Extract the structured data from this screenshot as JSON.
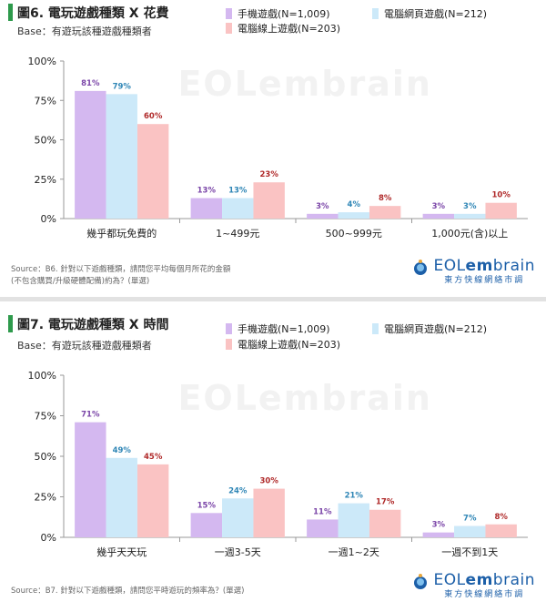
{
  "figures": [
    {
      "title": "圖6. 電玩遊戲種類 X 花費",
      "base": "Base：有遊玩該種遊戲種類者",
      "source_line1": "Source：B6. 針對以下遊戲種類，請問您平均每個月所花的金額",
      "source_line2": "(不包含購買/升級硬體配備)約為？(單選)"
    },
    {
      "title": "圖7. 電玩遊戲種類 X 時間",
      "base": "Base：有遊玩該種遊戲種類者",
      "source_line1": "Source：B7. 針對以下遊戲種類，請問您平時遊玩的頻率為？(單選)",
      "source_line2": ""
    }
  ],
  "legend": {
    "mobile": "手機遊戲(N=1,009)",
    "web": "電腦網頁遊戲(N=212)",
    "online": "電腦線上遊戲(N=203)"
  },
  "logo": {
    "eol": "EOL",
    "em": "em",
    "brain": "brain",
    "sub": "東方快線網絡市調"
  },
  "watermark": "EOLembrain",
  "colors": {
    "mobile": "#d4b8f0",
    "web": "#cce9f9",
    "online": "#fac3c3",
    "mobile_label": "#7b46a8",
    "web_label": "#2f86b6",
    "online_label": "#b02a2a",
    "title_bar": "#2e9a4c"
  },
  "chart_data": [
    {
      "type": "bar",
      "title": "圖6. 電玩遊戲種類 X 花費",
      "categories": [
        "幾乎都玩免費的",
        "1~499元",
        "500~999元",
        "1,000元(含)以上"
      ],
      "series": [
        {
          "name": "手機遊戲(N=1,009)",
          "values": [
            81,
            13,
            3,
            3
          ]
        },
        {
          "name": "電腦網頁遊戲(N=212)",
          "values": [
            79,
            13,
            4,
            3
          ]
        },
        {
          "name": "電腦線上遊戲(N=203)",
          "values": [
            60,
            23,
            8,
            10
          ]
        }
      ],
      "yticks": [
        "0%",
        "25%",
        "50%",
        "75%",
        "100%"
      ],
      "ylim": [
        0,
        100
      ],
      "legend_position": "top-right",
      "grid": false
    },
    {
      "type": "bar",
      "title": "圖7. 電玩遊戲種類 X 時間",
      "categories": [
        "幾乎天天玩",
        "一週3-5天",
        "一週1~2天",
        "一週不到1天"
      ],
      "series": [
        {
          "name": "手機遊戲(N=1,009)",
          "values": [
            71,
            15,
            11,
            3
          ]
        },
        {
          "name": "電腦網頁遊戲(N=212)",
          "values": [
            49,
            24,
            21,
            7
          ]
        },
        {
          "name": "電腦線上遊戲(N=203)",
          "values": [
            45,
            30,
            17,
            8
          ]
        }
      ],
      "yticks": [
        "0%",
        "25%",
        "50%",
        "75%",
        "100%"
      ],
      "ylim": [
        0,
        100
      ],
      "legend_position": "top-right",
      "grid": false
    }
  ]
}
